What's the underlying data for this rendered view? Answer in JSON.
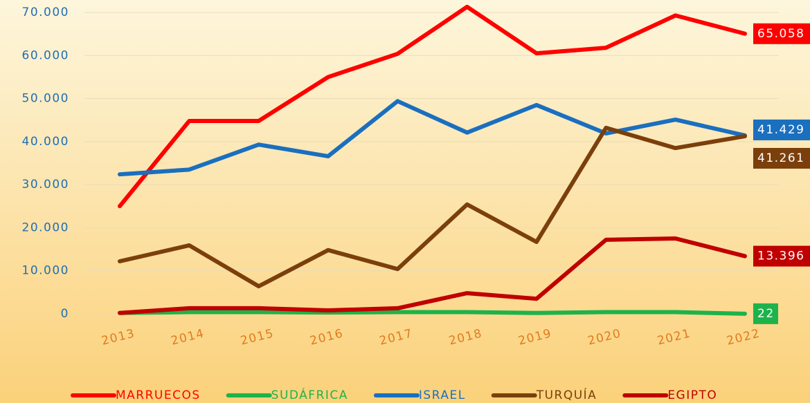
{
  "chart_data": {
    "type": "line",
    "categories": [
      "2013",
      "2014",
      "2015",
      "2016",
      "2017",
      "2018",
      "2019",
      "2020",
      "2021",
      "2022"
    ],
    "series": [
      {
        "name": "MARRUECOS",
        "color": "#ff0000",
        "values": [
          25000,
          44800,
          44800,
          55000,
          60400,
          71300,
          60500,
          61800,
          69300,
          65058
        ],
        "value_labels": [
          null,
          null,
          null,
          null,
          null,
          null,
          null,
          null,
          null,
          "65.058"
        ]
      },
      {
        "name": "SUDÁFRICA",
        "color": "#1db34a",
        "values": [
          200,
          400,
          400,
          300,
          400,
          400,
          200,
          400,
          400,
          22
        ],
        "value_labels": [
          null,
          null,
          null,
          null,
          null,
          null,
          null,
          null,
          null,
          "22"
        ]
      },
      {
        "name": "ISRAEL",
        "color": "#1a6fbf",
        "values": [
          32400,
          33500,
          39300,
          36600,
          49400,
          42100,
          48500,
          41900,
          45100,
          41429
        ],
        "value_labels": [
          null,
          null,
          null,
          null,
          null,
          null,
          null,
          null,
          null,
          "41.429"
        ]
      },
      {
        "name": "TURQUÍA",
        "color": "#7b3f0c",
        "values": [
          12200,
          15900,
          6400,
          14800,
          10400,
          25400,
          16700,
          43200,
          38500,
          41261
        ],
        "value_labels": [
          null,
          null,
          null,
          null,
          null,
          null,
          null,
          null,
          null,
          "41.261"
        ]
      },
      {
        "name": "EGIPTO",
        "color": "#c00000",
        "values": [
          200,
          1300,
          1300,
          800,
          1300,
          4800,
          3500,
          17200,
          17500,
          13396
        ],
        "value_labels": [
          null,
          null,
          null,
          null,
          null,
          null,
          null,
          null,
          null,
          "13.396"
        ]
      }
    ],
    "ylim": [
      0,
      70000
    ],
    "yticks": [
      {
        "value": 0,
        "label": "0"
      },
      {
        "value": 10000,
        "label": "10.000"
      },
      {
        "value": 20000,
        "label": "20.000"
      },
      {
        "value": 30000,
        "label": "30.000"
      },
      {
        "value": 40000,
        "label": "40.000"
      },
      {
        "value": 50000,
        "label": "50.000"
      },
      {
        "value": 60000,
        "label": "60.000"
      },
      {
        "value": 70000,
        "label": "70.000"
      }
    ],
    "grid": true,
    "legend": "bottom"
  }
}
